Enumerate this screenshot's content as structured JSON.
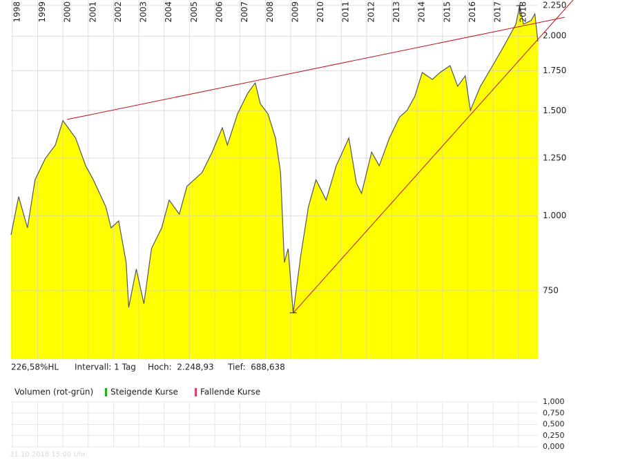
{
  "chart_data": [
    {
      "type": "line",
      "log_scale": true,
      "grid": true,
      "color": "#555555",
      "fill": "#ffff00",
      "x": [
        1997.95,
        1998.25,
        1998.6,
        1998.9,
        1999.3,
        1999.7,
        2000.0,
        2000.5,
        2000.9,
        2001.2,
        2001.7,
        2001.9,
        2002.2,
        2002.5,
        2002.6,
        2002.9,
        2003.2,
        2003.5,
        2003.9,
        2004.2,
        2004.6,
        2004.9,
        2005.5,
        2005.9,
        2006.3,
        2006.5,
        2006.9,
        2007.3,
        2007.6,
        2007.8,
        2008.1,
        2008.4,
        2008.6,
        2008.75,
        2008.9,
        2009.1,
        2009.4,
        2009.7,
        2010.0,
        2010.4,
        2010.8,
        2011.3,
        2011.6,
        2011.8,
        2012.2,
        2012.5,
        2012.9,
        2013.3,
        2013.6,
        2013.9,
        2014.2,
        2014.6,
        2014.9,
        2015.3,
        2015.6,
        2015.9,
        2016.1,
        2016.5,
        2016.9,
        2017.3,
        2017.6,
        2017.9,
        2018.05,
        2018.2,
        2018.5,
        2018.65,
        2018.77
      ],
      "values": [
        930,
        1077,
        955,
        1150,
        1247,
        1314,
        1444,
        1350,
        1213,
        1150,
        1035,
        955,
        981,
        836,
        703,
        815,
        713,
        882,
        955,
        1063,
        1007,
        1121,
        1182,
        1279,
        1405,
        1314,
        1482,
        1604,
        1670,
        1541,
        1482,
        1350,
        1182,
        836,
        882,
        688,
        859,
        1035,
        1150,
        1063,
        1213,
        1350,
        1135,
        1091,
        1279,
        1213,
        1350,
        1463,
        1502,
        1583,
        1738,
        1692,
        1738,
        1784,
        1648,
        1716,
        1502,
        1648,
        1761,
        1883,
        1984,
        2094,
        2248,
        2094,
        2123,
        2179,
        1958
      ],
      "xlim": [
        1997.95,
        2018.77
      ],
      "xticks": [
        1998,
        1999,
        2000,
        2001,
        2002,
        2003,
        2004,
        2005,
        2006,
        2007,
        2008,
        2009,
        2010,
        2011,
        2012,
        2013,
        2014,
        2015,
        2016,
        2017,
        2018
      ],
      "ylim": [
        576,
        2298
      ],
      "yticks": [
        750,
        {
          "value": 1000,
          "label": "1.000"
        },
        {
          "value": 1250,
          "label": "1.250"
        },
        {
          "value": 1500,
          "label": "1.500"
        },
        {
          "value": 1750,
          "label": "1.750"
        },
        {
          "value": 2000,
          "label": "2.000"
        },
        {
          "value": 2250,
          "label": "2.250"
        }
      ],
      "trendlines": [
        {
          "color": "#c0101a",
          "x": [
            2000.16,
            2019.83
          ],
          "values": [
            1450,
            2150
          ]
        },
        {
          "color": "#c0101a",
          "x": [
            2009.1,
            2020.16
          ],
          "values": [
            688,
            2298
          ]
        }
      ],
      "markers": [
        {
          "x": 2018.05,
          "y": 2248.93
        },
        {
          "x": 2009.1,
          "y": 688.638
        }
      ],
      "info": [
        "226,58%HL",
        "Intervall: 1 Tag",
        "Hoch:  2.248,93",
        "Tief:  688,638"
      ]
    },
    {
      "type": "volume",
      "title": "Volumen (rot-grün)",
      "grid": true,
      "series": [
        {
          "name": "Steigende Kurse",
          "color": "#19b219"
        },
        {
          "name": "Fallende Kurse",
          "color": "#e0405a"
        }
      ],
      "ylim": [
        0,
        1
      ],
      "yticks": [
        {
          "value": 1,
          "label": "1,000"
        },
        {
          "value": 0.75,
          "label": "0,750"
        },
        {
          "value": 0.5,
          "label": "0,500"
        },
        {
          "value": 0.25,
          "label": "0,250"
        },
        {
          "value": 0,
          "label": "0,000"
        }
      ],
      "footer": "31.10.2018 15:00 Uhr"
    }
  ]
}
